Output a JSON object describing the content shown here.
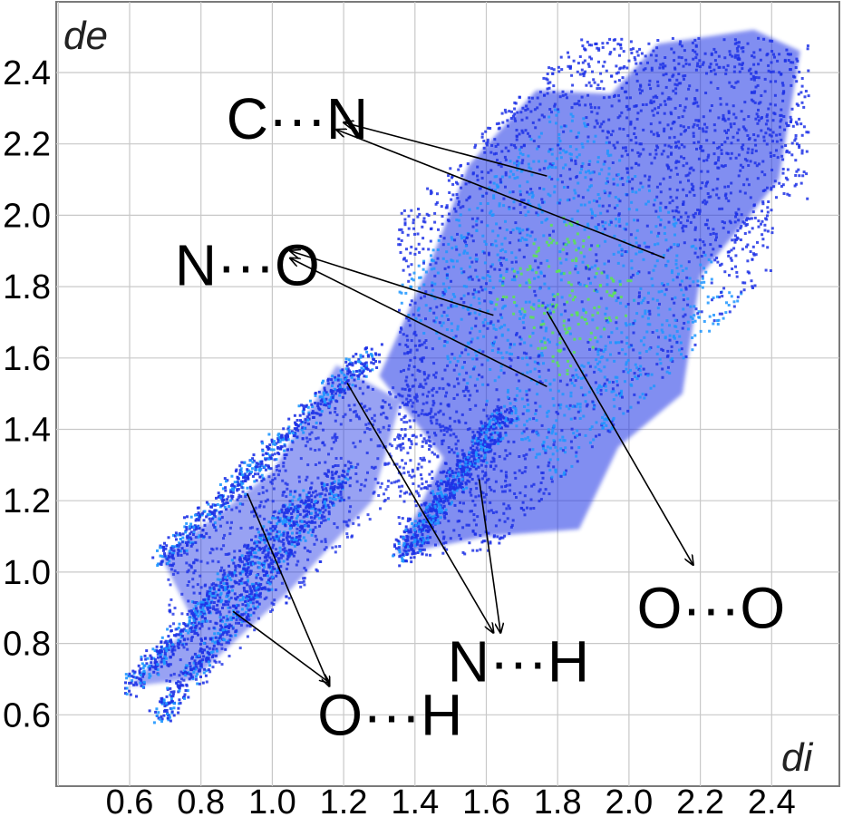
{
  "chart_data": {
    "type": "scatter",
    "title": "",
    "xlabel": "di",
    "ylabel": "de",
    "xlim": [
      0.4,
      2.6
    ],
    "ylim": [
      0.4,
      2.6
    ],
    "grid": true,
    "x_ticks": [
      "0.6",
      "0.8",
      "1.0",
      "1.2",
      "1.4",
      "1.6",
      "1.8",
      "2.0",
      "2.2",
      "2.4"
    ],
    "y_ticks": [
      "0.6",
      "0.8",
      "1.0",
      "1.2",
      "1.4",
      "1.6",
      "1.8",
      "2.0",
      "2.2",
      "2.4"
    ],
    "colors": {
      "low": "#1e32e6",
      "mid": "#1e96ff",
      "high": "#5ae650",
      "arrow": "#000000"
    },
    "regions": [
      {
        "di": [
          1.45,
          2.15
        ],
        "de": [
          1.05,
          2.35
        ],
        "density": "high"
      },
      {
        "di": [
          0.6,
          1.2
        ],
        "de": [
          0.6,
          1.2
        ],
        "density": "spikes"
      }
    ],
    "annotations": [
      {
        "label": "C···N",
        "x": 1.07,
        "y": 2.27,
        "arrows": [
          {
            "from": [
              1.77,
              2.11
            ],
            "to": [
              1.2,
              2.26
            ]
          },
          {
            "from": [
              2.1,
              1.88
            ],
            "to": [
              1.18,
              2.24
            ]
          }
        ]
      },
      {
        "label": "N···O",
        "x": 0.93,
        "y": 1.86,
        "arrows": [
          {
            "from": [
              1.62,
              1.72
            ],
            "to": [
              1.05,
              1.9
            ]
          },
          {
            "from": [
              1.77,
              1.52
            ],
            "to": [
              1.05,
              1.88
            ]
          }
        ]
      },
      {
        "label": "O···O",
        "x": 2.23,
        "y": 0.9,
        "arrows": [
          {
            "from": [
              1.77,
              1.73
            ],
            "to": [
              2.18,
              1.02
            ]
          }
        ]
      },
      {
        "label": "N···H",
        "x": 1.69,
        "y": 0.75,
        "arrows": [
          {
            "from": [
              1.21,
              1.53
            ],
            "to": [
              1.62,
              0.83
            ]
          },
          {
            "from": [
              1.58,
              1.26
            ],
            "to": [
              1.64,
              0.83
            ]
          }
        ]
      },
      {
        "label": "O···H",
        "x": 1.33,
        "y": 0.6,
        "arrows": [
          {
            "from": [
              0.93,
              1.22
            ],
            "to": [
              1.16,
              0.68
            ]
          },
          {
            "from": [
              0.89,
              0.89
            ],
            "to": [
              1.16,
              0.69
            ]
          }
        ]
      }
    ]
  }
}
